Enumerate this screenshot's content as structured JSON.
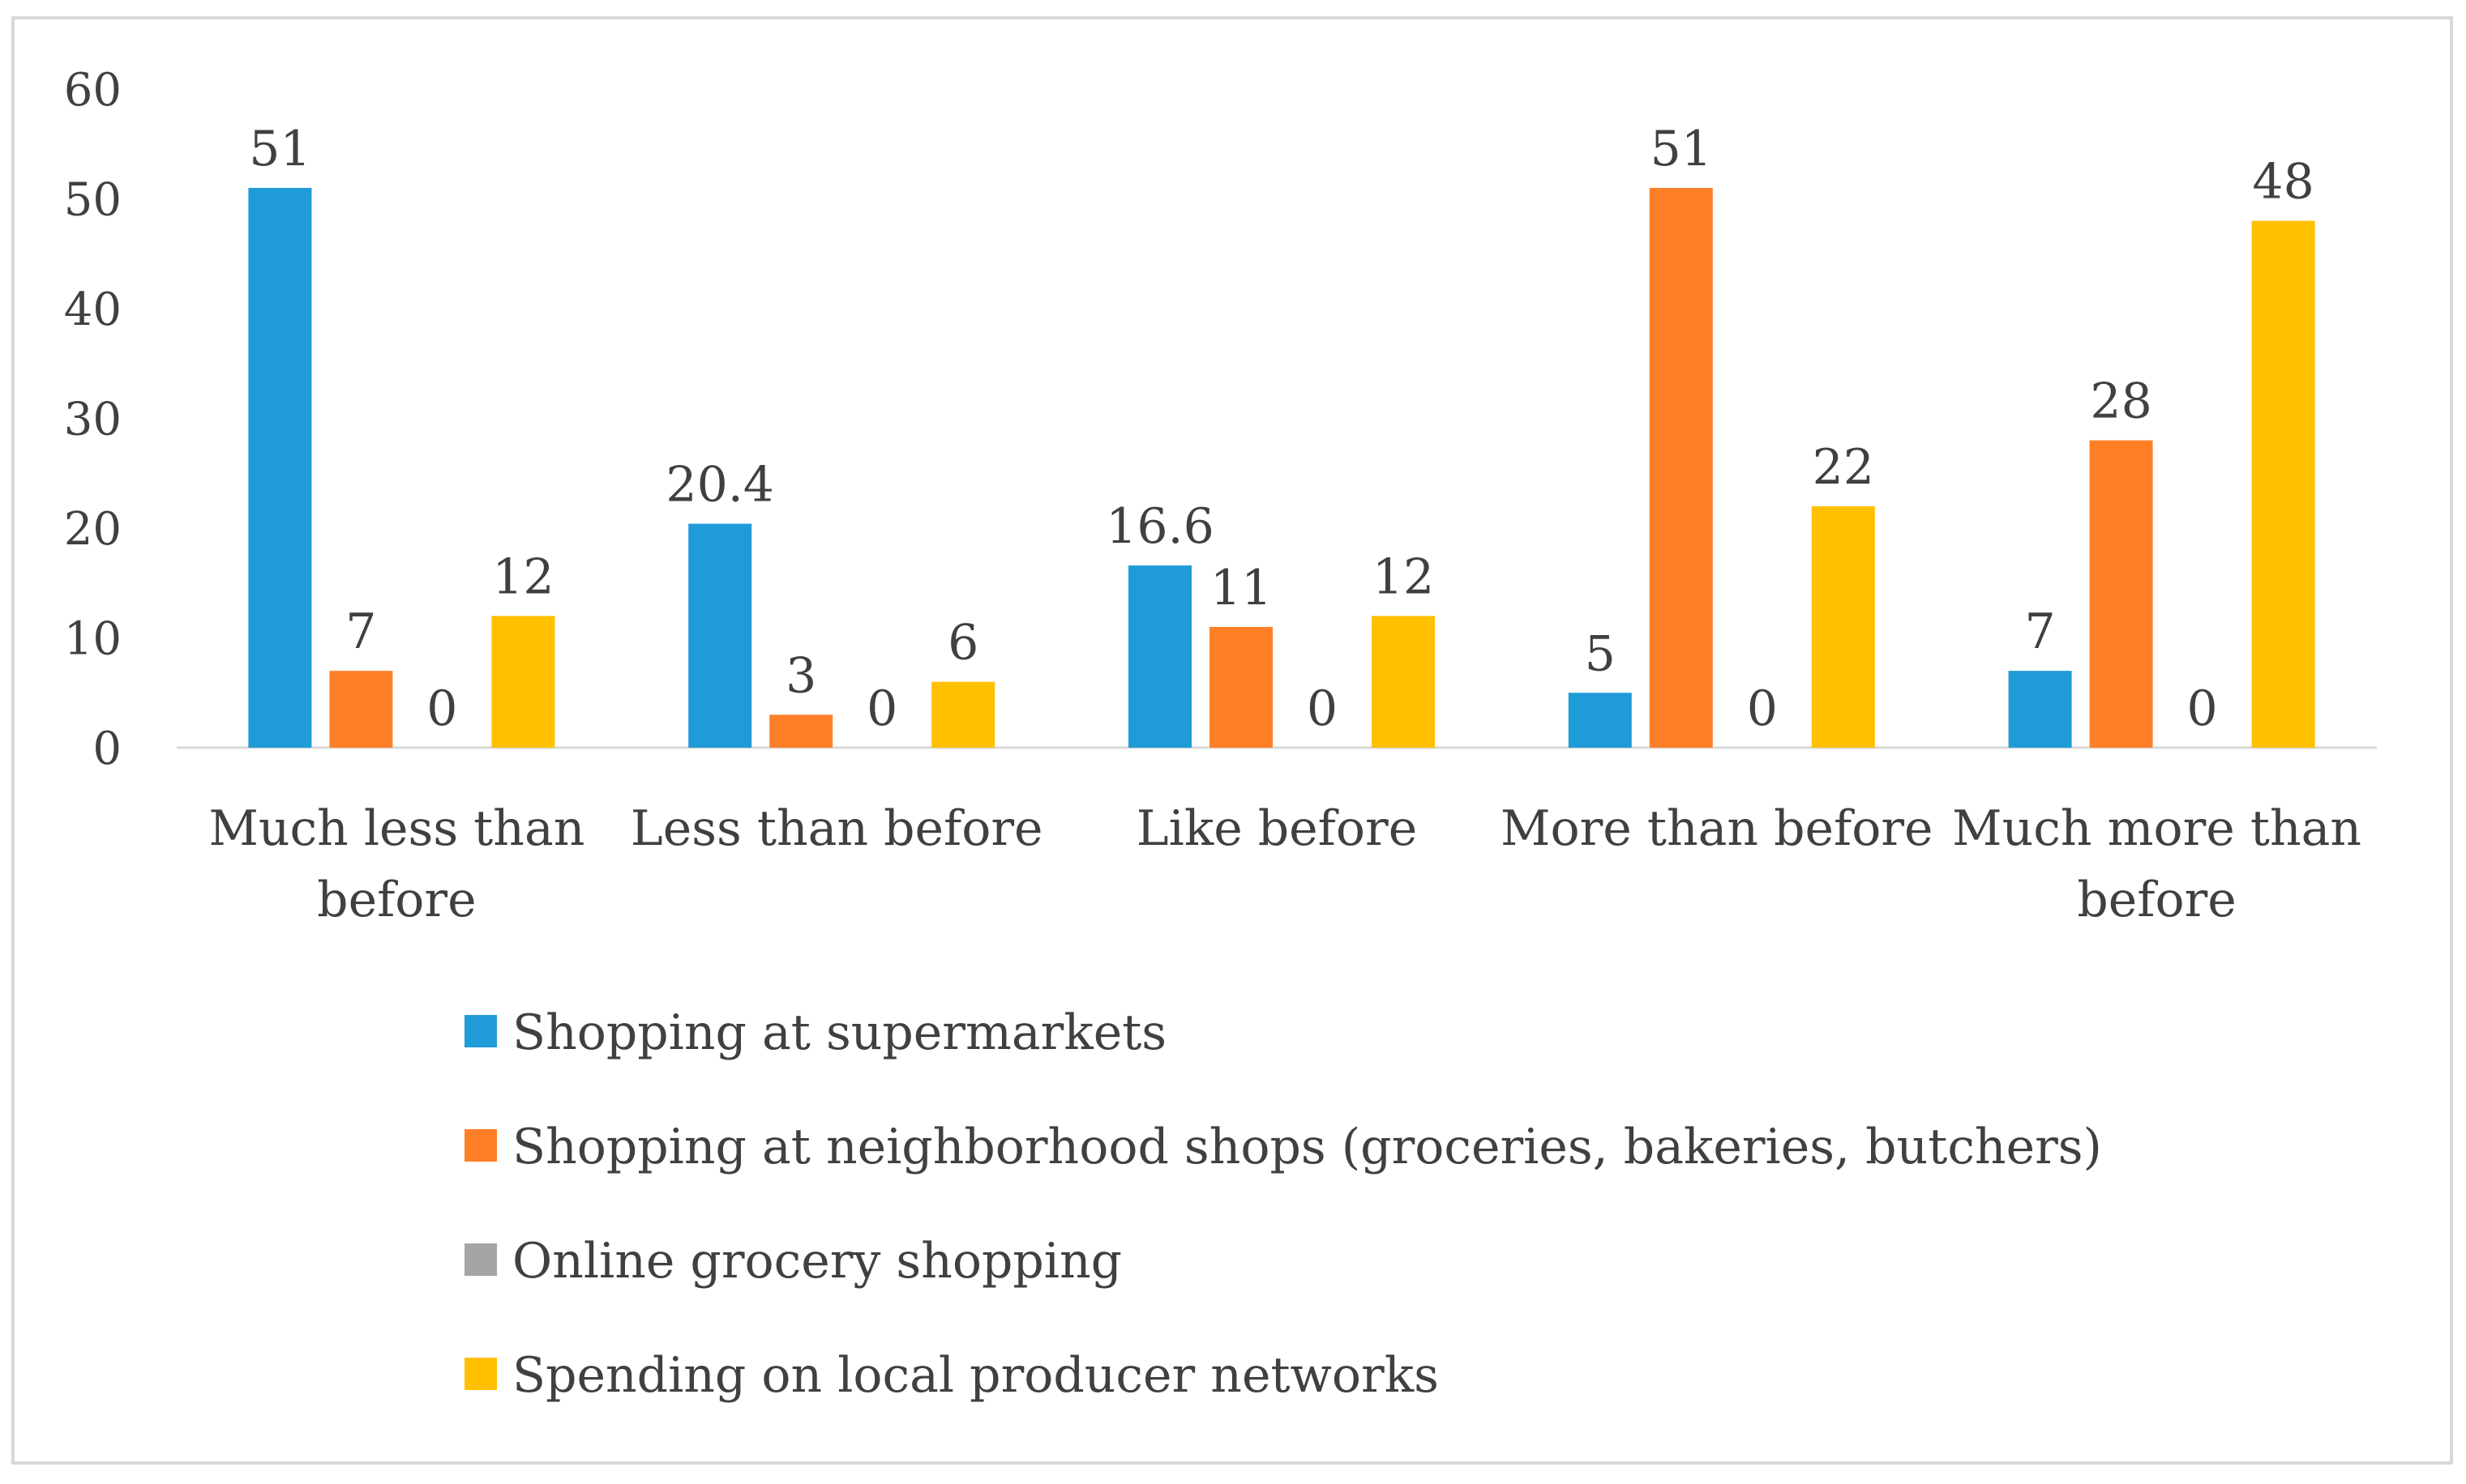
{
  "chart_data": {
    "type": "bar",
    "title": "",
    "xlabel": "",
    "ylabel": "",
    "ylim": [
      0,
      60
    ],
    "yticks": [
      0,
      10,
      20,
      30,
      40,
      50,
      60
    ],
    "grid": false,
    "legend_position": "bottom",
    "categories": [
      "Much less than before",
      "Less than before",
      "Like before",
      "More than before",
      "Much more than before"
    ],
    "series": [
      {
        "name": "Shopping at supermarkets",
        "color": "#1F9BD7",
        "values": [
          51,
          20.4,
          16.6,
          5,
          7
        ],
        "labels": [
          "51",
          "20.4",
          "16.6",
          "5",
          "7"
        ]
      },
      {
        "name": "Shopping at neighborhood shops (groceries, bakeries, butchers)",
        "color": "#FF7F27",
        "values": [
          7,
          3,
          11,
          51,
          28
        ],
        "labels": [
          "7",
          "3",
          "11",
          "51",
          "28"
        ]
      },
      {
        "name": "Online grocery shopping",
        "color": "#A5A5A5",
        "values": [
          0,
          0,
          0,
          0,
          0
        ],
        "labels": [
          "0",
          "0",
          "0",
          "0",
          "0"
        ]
      },
      {
        "name": "Spending on local producer networks",
        "color": "#FFC000",
        "values": [
          12,
          6,
          12,
          22,
          48
        ],
        "labels": [
          "12",
          "6",
          "12",
          "22",
          "48"
        ]
      }
    ]
  }
}
